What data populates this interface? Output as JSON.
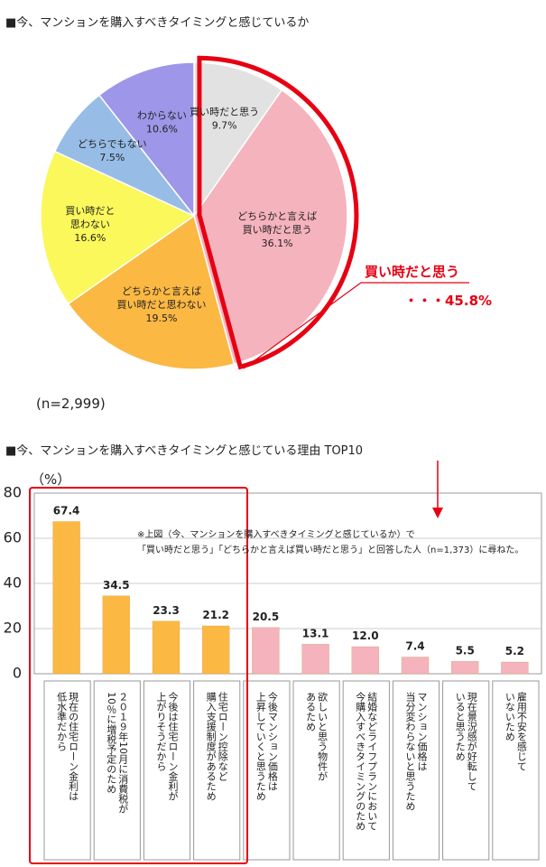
{
  "titles": {
    "pie": "■今、マンションを購入すべきタイミングと感じているか",
    "bar": "■今、マンションを購入すべきタイミングと感じている理由 TOP10"
  },
  "sample": "(n=2,999)",
  "callout": {
    "label": "買い時だと思う",
    "value": "・・・45.8%"
  },
  "note": {
    "line1": "※上図（今、マンションを購入すべきタイミングと感じているか）で",
    "line2": "「買い時だと思う」「どちらかと言えば買い時だと思う」と回答した人（n=1,373）に尋ねた。"
  },
  "colors": {
    "accent": "#e60012",
    "orange": "#fbb843",
    "pink": "#f4b3bd",
    "yellow": "#faf85a",
    "blue": "#97bde6",
    "purple": "#9e96e8",
    "gray": "#e2e2e2"
  },
  "chart_data": [
    {
      "type": "pie",
      "slices": [
        {
          "label": "買い時だと思う",
          "value": 9.7,
          "text": "9.7%",
          "color": "#e2e2e2"
        },
        {
          "label": "どちらかと言えば買い時だと思う",
          "value": 36.1,
          "text": "36.1%",
          "color": "#f4b3bd"
        },
        {
          "label": "どちらかと言えば買い時だと思わない",
          "value": 19.5,
          "text": "19.5%",
          "color": "#fbb843"
        },
        {
          "label": "買い時だと思わない",
          "value": 16.6,
          "text": "16.6%",
          "color": "#faf85a"
        },
        {
          "label": "どちらでもない",
          "value": 7.5,
          "text": "7.5%",
          "color": "#97bde6"
        },
        {
          "label": "わからない",
          "value": 10.6,
          "text": "10.6%",
          "color": "#9e96e8"
        }
      ],
      "label_lines": [
        [
          "買い時だと思う"
        ],
        [
          "どちらかと言えば",
          "買い時だと思う"
        ],
        [
          "どちらかと言えば",
          "買い時だと思わない"
        ],
        [
          "買い時だと",
          "思わない"
        ],
        [
          "どちらでもない"
        ],
        [
          "わからない"
        ]
      ]
    },
    {
      "type": "bar",
      "unit": "（%）",
      "ylim": [
        0,
        80
      ],
      "yticks": [
        "0",
        "20",
        "40",
        "60",
        "80"
      ],
      "values": [
        67.4,
        34.5,
        23.3,
        21.2,
        20.5,
        13.1,
        12.0,
        7.4,
        5.5,
        5.2
      ],
      "value_labels": [
        "67.4",
        "34.5",
        "23.3",
        "21.2",
        "20.5",
        "13.1",
        "12.0",
        "7.4",
        "5.5",
        "5.2"
      ],
      "colors": [
        "#fbb843",
        "#fbb843",
        "#fbb843",
        "#fbb843",
        "#f4b3bd",
        "#f4b3bd",
        "#f4b3bd",
        "#f4b3bd",
        "#f4b3bd",
        "#f4b3bd"
      ],
      "categories": [
        [
          "現在の住宅ローン金利は",
          "低水準だから"
        ],
        [
          "２０１９年10月に消費税が",
          "10％に増税予定のため"
        ],
        [
          "今後は住宅ローン金利が",
          "上がりそうだから"
        ],
        [
          "住宅ローン控除など",
          "購入支援制度があるため"
        ],
        [
          "今後マンション価格は",
          "上昇していくと思うため"
        ],
        [
          "欲しいと思う物件が",
          "あるため"
        ],
        [
          "結婚などライフプランにおいて",
          "今購入すべきタイミングのため"
        ],
        [
          "マンション価格は",
          "当分変わらないと思うため"
        ],
        [
          "現在景況感が好転して",
          "いると思うため"
        ],
        [
          "雇用不安を感じて",
          "いないため"
        ]
      ]
    }
  ]
}
